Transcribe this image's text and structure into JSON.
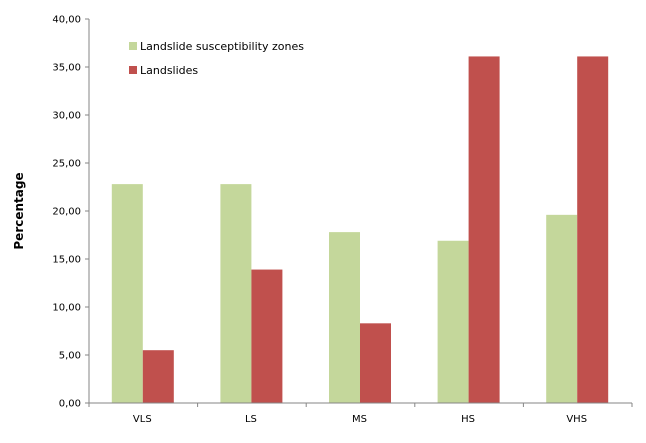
{
  "chart_data": {
    "type": "bar",
    "title": "",
    "xlabel": "",
    "ylabel": "Percentage",
    "ylim": [
      0,
      40
    ],
    "yticks": [
      "0,00",
      "5,00",
      "10,00",
      "15,00",
      "20,00",
      "25,00",
      "30,00",
      "35,00",
      "40,00"
    ],
    "categories": [
      "VLS",
      "LS",
      "MS",
      "HS",
      "VHS"
    ],
    "series": [
      {
        "name": "Landslide susceptibility zones",
        "color": "#c4d79b",
        "values": [
          22.8,
          22.8,
          17.8,
          16.9,
          19.6
        ]
      },
      {
        "name": "Landslides",
        "color": "#c0504d",
        "values": [
          5.5,
          13.9,
          8.3,
          36.1,
          36.1
        ]
      }
    ],
    "grid": false,
    "legend": "top-left"
  }
}
